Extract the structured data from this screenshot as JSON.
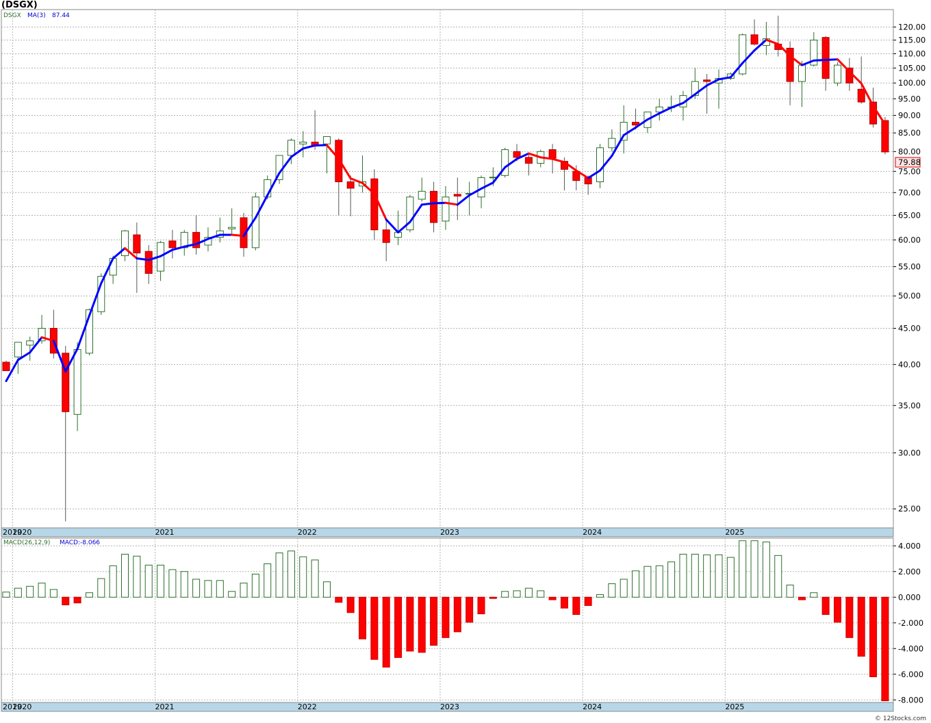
{
  "title": "(DSGX)",
  "watermark": "© 12Stocks.com",
  "colors": {
    "up": "#2a6e2a",
    "down": "#ff0000",
    "ma_up": "#0000ff",
    "ma_down": "#ff0000",
    "axis_band": "#b7d7e8",
    "grid": "#b0b0b0",
    "price_label_bg": "#ffe4e4",
    "price_label_border": "#cc0000"
  },
  "legend": {
    "symbol": "DSGX",
    "ma_label": "MA(3)",
    "ma_value": "87.44"
  },
  "macd_legend": {
    "label": "MACD(26,12,9)",
    "value_label": "MACD:-8.066"
  },
  "last_price_label": "79.88",
  "chart_data": [
    {
      "type": "candlestick",
      "scale": "log",
      "ylim": [
        23.5,
        127
      ],
      "yticks": [
        "120.00",
        "115.00",
        "110.00",
        "105.00",
        "100.00",
        "95.00",
        "90.00",
        "85.00",
        "80.00",
        "75.00",
        "70.00",
        "65.00",
        "60.00",
        "55.00",
        "50.00",
        "45.00",
        "40.00",
        "35.00",
        "30.00",
        "25.00"
      ],
      "ytick_values": [
        120,
        115,
        110,
        105,
        100,
        95,
        90,
        85,
        80,
        75,
        70,
        65,
        60,
        55,
        50,
        45,
        40,
        35,
        30,
        25
      ],
      "xticks": [
        "2019",
        "2020",
        "2021",
        "2022",
        "2023",
        "2024",
        "2025"
      ],
      "xtick_months": [
        0,
        1,
        13,
        25,
        37,
        49,
        61
      ],
      "start": "2019-12",
      "ohlc": [
        [
          40.3,
          40.5,
          39.2,
          39.2
        ],
        [
          41,
          43,
          38.8,
          43
        ],
        [
          42.6,
          43.8,
          40.5,
          43.2
        ],
        [
          43.2,
          47,
          42.8,
          45
        ],
        [
          45,
          47.8,
          40.8,
          41.5
        ],
        [
          41.5,
          42.5,
          24,
          34.3
        ],
        [
          34,
          43,
          32.2,
          42
        ],
        [
          41.5,
          48,
          41.2,
          47.8
        ],
        [
          47.5,
          53.8,
          47,
          53.3
        ],
        [
          53.5,
          57,
          52,
          56.5
        ],
        [
          57,
          62,
          56,
          61.8
        ],
        [
          61,
          63.5,
          50.5,
          57.5
        ],
        [
          57.8,
          59,
          52,
          53.8
        ],
        [
          54.2,
          59.8,
          52.5,
          59.5
        ],
        [
          59.8,
          62,
          56.5,
          58.5
        ],
        [
          58.5,
          62,
          57,
          61.5
        ],
        [
          61.5,
          65,
          57.2,
          58.5
        ],
        [
          59,
          62.5,
          57.8,
          60.5
        ],
        [
          60.5,
          64.5,
          59.5,
          61.8
        ],
        [
          62.2,
          66.5,
          61,
          62.5
        ],
        [
          64.5,
          65.5,
          56.8,
          58.5
        ],
        [
          58.5,
          70,
          58,
          69
        ],
        [
          69,
          74,
          68.5,
          73
        ],
        [
          73,
          78.5,
          72,
          79
        ],
        [
          79,
          83.5,
          76.8,
          83
        ],
        [
          82,
          85.5,
          78.5,
          82.5
        ],
        [
          82.5,
          91.5,
          80.5,
          81.5
        ],
        [
          82,
          83.5,
          74.5,
          84
        ],
        [
          83,
          83.5,
          65,
          72.5
        ],
        [
          72.5,
          74,
          64.8,
          71
        ],
        [
          71.5,
          79,
          70,
          72.5
        ],
        [
          73.2,
          75.5,
          60,
          62
        ],
        [
          62,
          64,
          56,
          59.5
        ],
        [
          60.5,
          66,
          59,
          61.5
        ],
        [
          62,
          69.5,
          61.5,
          69
        ],
        [
          68.5,
          73.5,
          68,
          70.3
        ],
        [
          70.3,
          72.5,
          61.5,
          63.5
        ],
        [
          63.8,
          71.5,
          62,
          69
        ],
        [
          69.6,
          73.5,
          64,
          69.2
        ],
        [
          69.8,
          72.5,
          65,
          69.8
        ],
        [
          69,
          74,
          66.5,
          73.5
        ],
        [
          73.5,
          76,
          71.5,
          73.6
        ],
        [
          74,
          81,
          73.5,
          80.5
        ],
        [
          80,
          82,
          77.5,
          78.5
        ],
        [
          78.5,
          79.5,
          74,
          77
        ],
        [
          77,
          80.5,
          76,
          80
        ],
        [
          80.5,
          82,
          74.5,
          78.3
        ],
        [
          77.5,
          78.5,
          70.5,
          75.5
        ],
        [
          75,
          76.5,
          70.5,
          72.8
        ],
        [
          73.5,
          74,
          69.5,
          72
        ],
        [
          72.5,
          82,
          71,
          81
        ],
        [
          81,
          86,
          80,
          83.5
        ],
        [
          83,
          93,
          79.5,
          88
        ],
        [
          88,
          92,
          86,
          87.2
        ],
        [
          86.5,
          91,
          85,
          91
        ],
        [
          91,
          95,
          88.5,
          92.5
        ],
        [
          92.5,
          96,
          91,
          92.5
        ],
        [
          92.5,
          97.5,
          88.5,
          96
        ],
        [
          96,
          105,
          95,
          100.5
        ],
        [
          101,
          103,
          90.5,
          100.5
        ],
        [
          100,
          104.5,
          92,
          101.5
        ],
        [
          101.5,
          103.5,
          101,
          103
        ],
        [
          103,
          117.5,
          102.5,
          117
        ],
        [
          117,
          123,
          113,
          113.5
        ],
        [
          113,
          122,
          109.5,
          115.5
        ],
        [
          113.5,
          124.5,
          109,
          111.5
        ],
        [
          112,
          114.5,
          93,
          100.5
        ],
        [
          100.5,
          107.5,
          92.5,
          106
        ],
        [
          106,
          118,
          105.5,
          115
        ],
        [
          116,
          116.5,
          97.5,
          101.5
        ],
        [
          100,
          107,
          99,
          106
        ],
        [
          105,
          108.5,
          97.5,
          100
        ],
        [
          98,
          109,
          93.5,
          94
        ],
        [
          94,
          98.5,
          86.5,
          87.5
        ],
        [
          88.5,
          89.5,
          79.3,
          79.9
        ]
      ],
      "ma3": [
        37.9,
        40.6,
        41.6,
        43.7,
        43.2,
        39.1,
        42.1,
        46.9,
        52.1,
        56.5,
        58.4,
        56.5,
        56.2,
        56.9,
        58.1,
        58.7,
        59.2,
        60.2,
        61,
        61,
        60.8,
        64.5,
        69.4,
        74.6,
        78.6,
        80.8,
        81.6,
        81.7,
        78.1,
        73.3,
        72.2,
        69.7,
        64.1,
        61.5,
        63.6,
        67.3,
        67.6,
        67.7,
        67.3,
        69.4,
        70.9,
        72.3,
        76,
        78.1,
        79.5,
        78.5,
        78.1,
        77.3,
        75.2,
        73.4,
        75.2,
        78.9,
        84.4,
        86.5,
        88.8,
        90.6,
        92.3,
        93.7,
        96.4,
        99.2,
        101.2,
        101.9,
        106.7,
        111.2,
        115.1,
        113.5,
        109.2,
        106,
        107.6,
        107.8,
        108,
        103.8,
        99.9,
        92.8,
        87.4
      ],
      "ma3_direction": [
        "u",
        "u",
        "u",
        "u",
        "d",
        "u",
        "u",
        "u",
        "u",
        "u",
        "u",
        "d",
        "u",
        "u",
        "u",
        "u",
        "u",
        "u",
        "u",
        "u",
        "d",
        "u",
        "u",
        "u",
        "u",
        "u",
        "u",
        "u",
        "d",
        "d",
        "d",
        "d",
        "d",
        "u",
        "u",
        "u",
        "u",
        "u",
        "d",
        "u",
        "u",
        "u",
        "u",
        "u",
        "u",
        "d",
        "d",
        "d",
        "d",
        "d",
        "u",
        "u",
        "u",
        "u",
        "u",
        "u",
        "u",
        "u",
        "u",
        "u",
        "u",
        "u",
        "u",
        "u",
        "u",
        "d",
        "d",
        "d",
        "u",
        "u",
        "u",
        "d",
        "d",
        "d",
        "d"
      ]
    },
    {
      "type": "bar",
      "name": "MACD(26,12,9)",
      "ylim": [
        -8.2,
        4.6
      ],
      "yticks": [
        "4.000",
        "2.000",
        "0.000",
        "-2.000",
        "-4.000",
        "-6.000",
        "-8.000"
      ],
      "ytick_values": [
        4,
        2,
        0,
        -2,
        -4,
        -6,
        -8
      ],
      "xticks": [
        "2019",
        "2020",
        "2021",
        "2022",
        "2023",
        "2024",
        "2025"
      ],
      "values": [
        0.4,
        0.7,
        0.85,
        1.1,
        0.6,
        -0.6,
        -0.45,
        0.35,
        1.45,
        2.45,
        3.35,
        3.2,
        2.5,
        2.5,
        2.15,
        2,
        1.4,
        1.3,
        1.3,
        0.45,
        1.1,
        1.8,
        2.6,
        3.45,
        3.6,
        3.15,
        2.9,
        1.2,
        -0.4,
        -1.2,
        -3.25,
        -4.85,
        -5.45,
        -4.7,
        -4.2,
        -4.3,
        -3.75,
        -3.15,
        -2.7,
        -1.95,
        -1.3,
        -0.1,
        0.45,
        0.5,
        0.7,
        0.5,
        -0.2,
        -0.85,
        -1.35,
        -0.65,
        0.2,
        1.05,
        1.4,
        2.05,
        2.4,
        2.45,
        2.75,
        3.35,
        3.35,
        3.3,
        3.3,
        3.1,
        4.4,
        4.4,
        4.3,
        3.25,
        0.95,
        -0.2,
        0.35,
        -1.35,
        -1.95,
        -3.15,
        -4.6,
        -6.2,
        -8.07
      ]
    }
  ]
}
